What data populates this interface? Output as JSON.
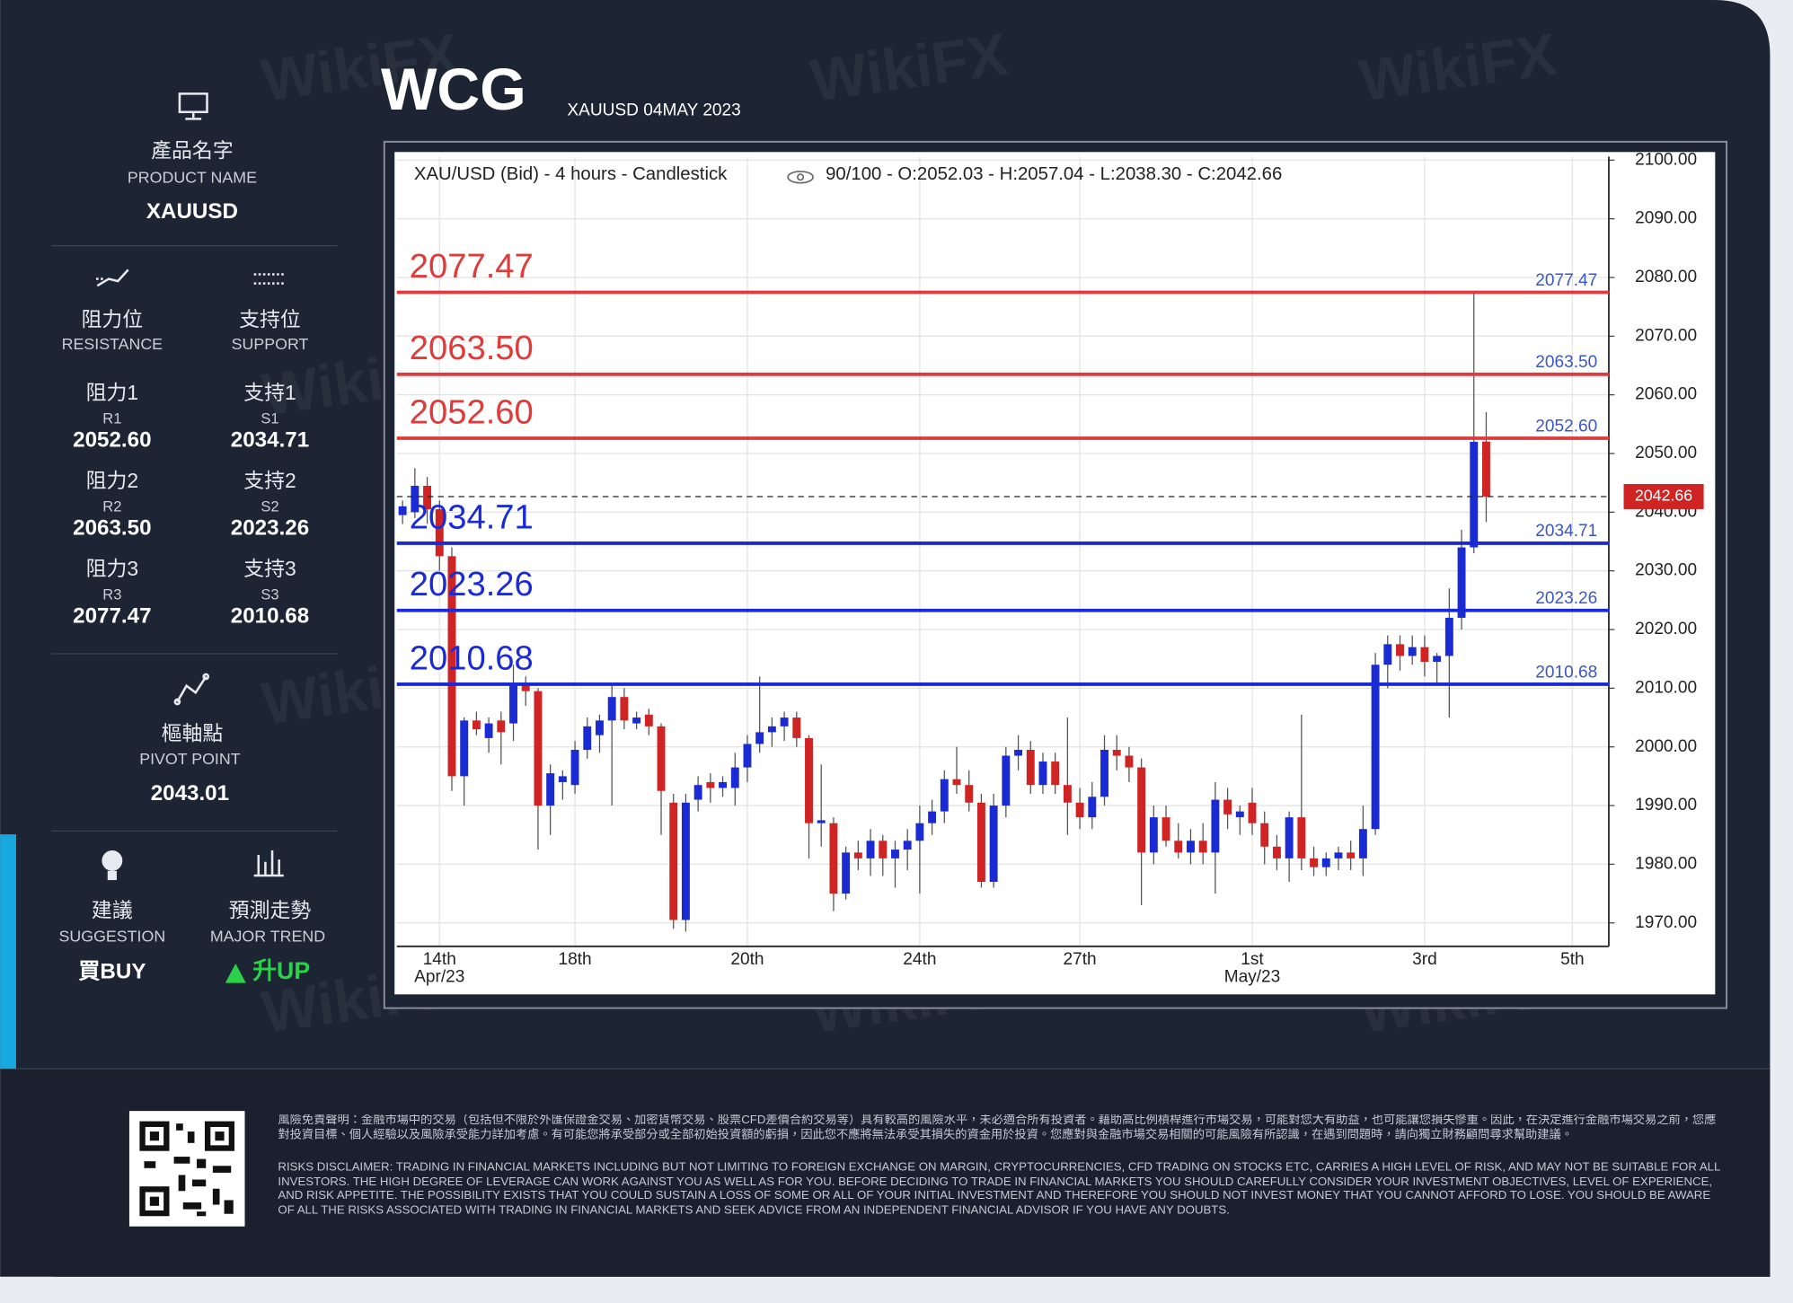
{
  "header": {
    "logo": "WCG",
    "subtitle": "XAUUSD 04MAY 2023"
  },
  "sidebar": {
    "product": {
      "label_zh": "產品名字",
      "label_en": "PRODUCT NAME",
      "value": "XAUUSD"
    },
    "resistance": {
      "label_zh": "阻力位",
      "label_en": "RESISTANCE",
      "levels": [
        {
          "zh": "阻力1",
          "code": "R1",
          "value": "2052.60"
        },
        {
          "zh": "阻力2",
          "code": "R2",
          "value": "2063.50"
        },
        {
          "zh": "阻力3",
          "code": "R3",
          "value": "2077.47"
        }
      ]
    },
    "support": {
      "label_zh": "支持位",
      "label_en": "SUPPORT",
      "levels": [
        {
          "zh": "支持1",
          "code": "S1",
          "value": "2034.71"
        },
        {
          "zh": "支持2",
          "code": "S2",
          "value": "2023.26"
        },
        {
          "zh": "支持3",
          "code": "S3",
          "value": "2010.68"
        }
      ]
    },
    "pivot": {
      "label_zh": "樞軸點",
      "label_en": "PIVOT POINT",
      "value": "2043.01"
    },
    "suggestion": {
      "label_zh": "建議",
      "label_en": "SUGGESTION",
      "value": "買BUY"
    },
    "trend": {
      "label_zh": "預測走勢",
      "label_en": "MAJOR TREND",
      "value": "升UP"
    }
  },
  "chart_data": {
    "type": "candlestick",
    "title": "XAU/USD (Bid) - 4 hours - Candlestick",
    "subtitle": "90/100 - O:2052.03 - H:2057.04 - L:2038.30 - C:2042.66",
    "categories": [
      null,
      null,
      null,
      "14th Apr/23",
      null,
      null,
      null,
      null,
      null,
      null,
      null,
      null,
      null,
      null,
      "18th",
      null,
      null,
      null,
      null,
      null,
      null,
      null,
      null,
      null,
      null,
      null,
      null,
      null,
      "20th",
      null,
      null,
      null,
      null,
      null,
      null,
      null,
      null,
      null,
      null,
      null,
      null,
      null,
      "24th",
      null,
      null,
      null,
      null,
      null,
      null,
      null,
      null,
      null,
      null,
      null,
      null,
      "27th",
      null,
      null,
      null,
      null,
      null,
      null,
      null,
      null,
      null,
      null,
      null,
      null,
      null,
      "1st May/23",
      null,
      null,
      null,
      null,
      null,
      null,
      null,
      null,
      null,
      null,
      null,
      null,
      null,
      "3rd",
      null,
      null,
      null,
      null,
      null,
      null,
      null,
      null,
      null,
      null,
      null,
      "5th",
      null
    ],
    "open": [
      2039.5,
      2040,
      2044.5,
      2040.5,
      2032.5,
      1995,
      2004.5,
      2001.5,
      2004.5,
      2004,
      2010.5,
      2009.5,
      1990,
      1994,
      1993.5,
      1999.5,
      2002,
      2004.5,
      2008.5,
      2004,
      2005.5,
      2003.5,
      1990.5,
      1970.5,
      1991,
      1994,
      1993,
      1993,
      1996.5,
      2000.5,
      2002.5,
      2003.5,
      2005,
      2001.5,
      1987,
      1987,
      1975,
      1982,
      1981,
      1984,
      1981,
      1982.5,
      1984,
      1987,
      1989,
      1994.5,
      1993.5,
      1990.5,
      1977,
      1990,
      1998.5,
      1999.5,
      1993.5,
      1997.5,
      1993.5,
      1990.5,
      1988,
      1991.5,
      1999.5,
      1998.5,
      1996.5,
      1982,
      1988,
      1984,
      1982,
      1984,
      1982,
      1991,
      1988,
      1990.5,
      1987,
      1983,
      1981,
      1988,
      1981,
      1979.5,
      1981,
      1982,
      1981,
      1986,
      2014,
      2017.5,
      2015.5,
      2017,
      2014.5,
      2015.5,
      2022,
      2034,
      2052.03,
      null,
      null,
      null,
      null,
      null,
      null,
      null,
      null
    ],
    "high": [
      2042,
      2047.5,
      2046,
      2042,
      2034,
      2005,
      2006,
      2005,
      2006,
      2014,
      2012,
      2010,
      1997,
      1996,
      2001,
      2005,
      2005.5,
      2010.5,
      2010,
      2006,
      2006.5,
      2004,
      1992,
      1992,
      1995,
      1995.5,
      1995,
      1999,
      2002,
      2012,
      2005,
      2006,
      2006,
      2002,
      1997,
      1988,
      1983,
      1984,
      1986,
      1985,
      1984,
      1986,
      1990,
      1991,
      1996,
      2000,
      1996,
      1992,
      1992,
      2000,
      2002,
      2001,
      1999,
      1999,
      2005,
      1993,
      1994,
      2002,
      2002,
      2000,
      1998,
      1990,
      1990,
      1987,
      1986,
      1987,
      1994,
      1993,
      1990,
      1993,
      1989,
      1985,
      1989,
      2005.5,
      1983,
      1982,
      1983,
      1984,
      1990,
      2016,
      2019,
      2019,
      2019,
      2019,
      2016,
      2027,
      2037,
      2077.47,
      2057.04,
      null,
      null,
      null,
      null,
      null,
      null,
      null,
      null
    ],
    "low": [
      2038,
      2039,
      2038,
      2030,
      1992.5,
      1990,
      2002,
      1999,
      1997,
      2001,
      2007,
      1982.5,
      1985,
      1991,
      1992,
      1998,
      1999,
      1990,
      2003,
      2003,
      2002,
      1985,
      1969,
      1968.5,
      1989,
      1990.5,
      1991.5,
      1990,
      1994,
      1999,
      2000,
      2001,
      2000,
      1981,
      1983,
      1972,
      1974,
      1979,
      1978,
      1978,
      1976,
      1979,
      1975,
      1985,
      1987,
      1992,
      1989,
      1976,
      1976,
      1988,
      1996,
      1992,
      1992,
      1992,
      1985,
      1986,
      1986,
      1990,
      1996,
      1994,
      1973,
      1980,
      1983,
      1981,
      1980,
      1980,
      1975,
      1986,
      1985,
      1985,
      1980,
      1979,
      1977,
      1979,
      1978,
      1978,
      1979,
      1979,
      1978,
      1985,
      2010,
      2013,
      2014,
      2012,
      2011,
      2005,
      2020,
      2033,
      2038.3,
      null,
      null,
      null,
      null,
      null,
      null,
      null,
      null
    ],
    "close": [
      2041,
      2044.5,
      2040.5,
      2032.5,
      1995,
      2004.5,
      2003,
      2004,
      2002.5,
      2010.5,
      2009.5,
      1990,
      1995.5,
      1995,
      1999.5,
      2003.5,
      2004.5,
      2008.5,
      2004.5,
      2005,
      2003.5,
      1992.5,
      1970.5,
      1990.5,
      1993.5,
      1993,
      1994,
      1996.5,
      2000.5,
      2002.5,
      2003.5,
      2005,
      2001.5,
      1987,
      1987.5,
      1975,
      1982,
      1981,
      1984,
      1981,
      1982.5,
      1984,
      1987,
      1989,
      1994.5,
      1993.5,
      1990.5,
      1977,
      1990,
      1998.5,
      1999.5,
      1993.5,
      1997.5,
      1993.5,
      1990.5,
      1988,
      1991.5,
      1999.5,
      1998.5,
      1996.5,
      1982,
      1988,
      1984,
      1982,
      1984,
      1982,
      1991,
      1988.5,
      1989,
      1987,
      1983,
      1981,
      1988,
      1981,
      1979.5,
      1981,
      1982,
      1981,
      1986,
      2014,
      2017.5,
      2015.5,
      2017,
      2014.5,
      2015.5,
      2022,
      2034,
      2052,
      2042.66,
      null,
      null,
      null,
      null,
      null,
      null,
      null,
      null
    ],
    "up_color": "#1b2bd4",
    "down_color": "#d02424",
    "ylim": [
      1966,
      2100.6
    ],
    "yticks": [
      {
        "value": 1970,
        "label": "1970.00"
      },
      {
        "value": 1980,
        "label": "1980.00"
      },
      {
        "value": 1990,
        "label": "1990.00"
      },
      {
        "value": 2000,
        "label": "2000.00"
      },
      {
        "value": 2010,
        "label": "2010.00"
      },
      {
        "value": 2020,
        "label": "2020.00"
      },
      {
        "value": 2030,
        "label": "2030.00"
      },
      {
        "value": 2040,
        "label": "2040.00"
      },
      {
        "value": 2050,
        "label": "2050.00"
      },
      {
        "value": 2060,
        "label": "2060.00"
      },
      {
        "value": 2070,
        "label": "2070.00"
      },
      {
        "value": 2080,
        "label": "2080.00"
      },
      {
        "value": 2090,
        "label": "2090.00"
      },
      {
        "value": 2100,
        "label": "2100.00"
      }
    ],
    "grid": true,
    "level_label_color": "#3a56c8",
    "levels": [
      {
        "value": 2077.47,
        "label": "2077.47",
        "color": "#e03a3a"
      },
      {
        "value": 2063.5,
        "label": "2063.50",
        "color": "#e03a3a"
      },
      {
        "value": 2052.6,
        "label": "2052.60",
        "color": "#e03a3a"
      },
      {
        "value": 2034.71,
        "label": "2034.71",
        "color": "#1a2ad6"
      },
      {
        "value": 2023.26,
        "label": "2023.26",
        "color": "#1a2ad6"
      },
      {
        "value": 2010.68,
        "label": "2010.68",
        "color": "#1a2ad6"
      }
    ]
  },
  "disclaimer": {
    "zh": "風險免責聲明：金融市場中的交易（包括但不限於外匯保證金交易、加密貨幣交易、股票CFD差價合約交易等）具有較高的風險水平，未必適合所有投資者。藉助高比例槓桿進行市場交易，可能對您大有助益，也可能讓您損失慘重。因此，在決定進行金融市場交易之前，您應對投資目標、個人經驗以及風險承受能力詳加考慮。有可能您將承受部分或全部初始投資額的虧損，因此您不應將無法承受其損失的資金用於投資。您應對與金融市場交易相關的可能風險有所認識，在遇到問題時，請向獨立財務顧問尋求幫助建議。",
    "en": "RISKS DISCLAIMER: TRADING IN FINANCIAL MARKETS INCLUDING BUT NOT LIMITING TO FOREIGN EXCHANGE ON MARGIN, CRYPTOCURRENCIES, CFD TRADING ON STOCKS ETC, CARRIES A HIGH LEVEL OF RISK, AND MAY NOT BE SUITABLE FOR ALL INVESTORS. THE HIGH DEGREE OF LEVERAGE CAN WORK AGAINST YOU AS WELL AS FOR YOU. BEFORE DECIDING TO TRADE IN FINANCIAL MARKETS YOU SHOULD CAREFULLY CONSIDER YOUR INVESTMENT OBJECTIVES, LEVEL OF EXPERIENCE, AND RISK APPETITE. THE POSSIBILITY EXISTS THAT YOU COULD SUSTAIN A LOSS OF SOME OR ALL OF YOUR INITIAL INVESTMENT AND THEREFORE YOU SHOULD NOT INVEST MONEY THAT YOU CANNOT AFFORD TO LOSE. YOU SHOULD BE AWARE OF ALL THE RISKS ASSOCIATED WITH TRADING IN FINANCIAL MARKETS AND SEEK ADVICE FROM AN INDEPENDENT FINANCIAL ADVISOR IF YOU HAVE ANY DOUBTS."
  },
  "watermark": "WikiFX"
}
